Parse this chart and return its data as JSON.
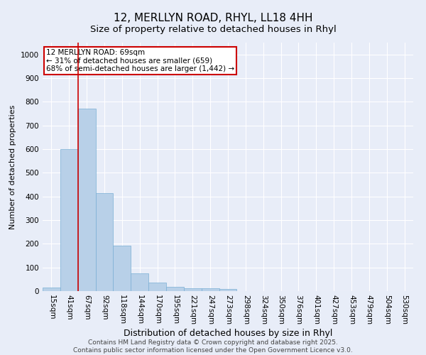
{
  "title": "12, MERLLYN ROAD, RHYL, LL18 4HH",
  "subtitle": "Size of property relative to detached houses in Rhyl",
  "xlabel": "Distribution of detached houses by size in Rhyl",
  "ylabel": "Number of detached properties",
  "categories": [
    "15sqm",
    "41sqm",
    "67sqm",
    "92sqm",
    "118sqm",
    "144sqm",
    "170sqm",
    "195sqm",
    "221sqm",
    "247sqm",
    "273sqm",
    "298sqm",
    "324sqm",
    "350sqm",
    "376sqm",
    "401sqm",
    "427sqm",
    "453sqm",
    "479sqm",
    "504sqm",
    "530sqm"
  ],
  "values": [
    15,
    600,
    770,
    415,
    193,
    75,
    37,
    18,
    12,
    12,
    8,
    0,
    0,
    0,
    0,
    0,
    0,
    0,
    0,
    0,
    0
  ],
  "bar_color": "#b8d0e8",
  "bar_edge_color": "#7aafd4",
  "vline_color": "#cc0000",
  "annotation_text": "12 MERLLYN ROAD: 69sqm\n← 31% of detached houses are smaller (659)\n68% of semi-detached houses are larger (1,442) →",
  "annotation_box_facecolor": "#ffffff",
  "annotation_box_edgecolor": "#cc0000",
  "ylim": [
    0,
    1050
  ],
  "yticks": [
    0,
    100,
    200,
    300,
    400,
    500,
    600,
    700,
    800,
    900,
    1000
  ],
  "background_color": "#e8edf8",
  "plot_bg_color": "#e8edf8",
  "grid_color": "#ffffff",
  "footer": "Contains HM Land Registry data © Crown copyright and database right 2025.\nContains public sector information licensed under the Open Government Licence v3.0.",
  "title_fontsize": 11,
  "subtitle_fontsize": 9.5,
  "xlabel_fontsize": 9,
  "ylabel_fontsize": 8,
  "tick_fontsize": 7.5,
  "footer_fontsize": 6.5,
  "vline_bin_index": 2
}
